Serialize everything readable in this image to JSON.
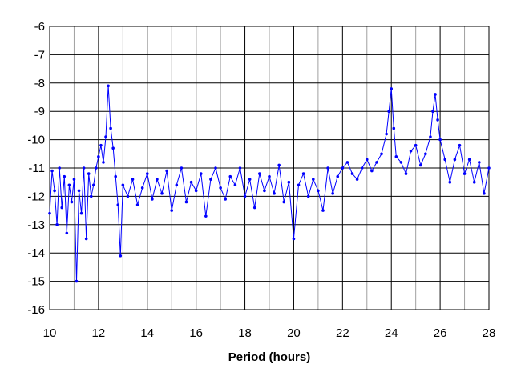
{
  "chart_data": {
    "type": "line",
    "title": "",
    "xlabel": "Period (hours)",
    "ylabel": "",
    "xlim": [
      10,
      28
    ],
    "ylim": [
      -16,
      -6
    ],
    "x_ticks": [
      10,
      12,
      14,
      16,
      18,
      20,
      22,
      24,
      26,
      28
    ],
    "x_tick_labels": [
      "10",
      "12",
      "14",
      "16",
      "18",
      "20",
      "22",
      "24",
      "26",
      "28"
    ],
    "y_ticks": [
      -16,
      -15,
      -14,
      -13,
      -12,
      -11,
      -10,
      -9,
      -8,
      -7,
      -6
    ],
    "y_tick_labels": [
      "-16",
      "-15",
      "-14",
      "-13",
      "-12",
      "-11",
      "-10",
      "-9",
      "-8",
      "-7",
      "-6"
    ],
    "grid": {
      "major_x": true,
      "minor_x": true,
      "major_y": true
    },
    "legend": "none",
    "series": [
      {
        "color": "#0000ff",
        "marker": "circle",
        "x": [
          10.0,
          10.1,
          10.2,
          10.3,
          10.4,
          10.5,
          10.6,
          10.7,
          10.8,
          10.9,
          11.0,
          11.1,
          11.2,
          11.3,
          11.4,
          11.5,
          11.6,
          11.7,
          11.8,
          11.9,
          12.0,
          12.1,
          12.2,
          12.3,
          12.4,
          12.5,
          12.6,
          12.7,
          12.8,
          12.9,
          13.0,
          13.2,
          13.4,
          13.6,
          13.8,
          14.0,
          14.2,
          14.4,
          14.6,
          14.8,
          15.0,
          15.2,
          15.4,
          15.6,
          15.8,
          16.0,
          16.2,
          16.4,
          16.6,
          16.8,
          17.0,
          17.2,
          17.4,
          17.6,
          17.8,
          18.0,
          18.2,
          18.4,
          18.6,
          18.8,
          19.0,
          19.2,
          19.4,
          19.6,
          19.8,
          20.0,
          20.2,
          20.4,
          20.6,
          20.8,
          21.0,
          21.2,
          21.4,
          21.6,
          21.8,
          22.0,
          22.2,
          22.4,
          22.6,
          22.8,
          23.0,
          23.2,
          23.4,
          23.6,
          23.8,
          23.9,
          24.0,
          24.1,
          24.2,
          24.4,
          24.6,
          24.8,
          25.0,
          25.2,
          25.4,
          25.6,
          25.7,
          25.8,
          25.9,
          26.0,
          26.2,
          26.4,
          26.6,
          26.8,
          27.0,
          27.2,
          27.4,
          27.6,
          27.8,
          28.0
        ],
        "y": [
          -12.6,
          -11.1,
          -11.8,
          -13.0,
          -11.0,
          -12.4,
          -11.3,
          -13.3,
          -11.6,
          -12.2,
          -11.4,
          -15.0,
          -11.8,
          -12.6,
          -11.0,
          -13.5,
          -11.2,
          -12.0,
          -11.6,
          -11.0,
          -10.6,
          -10.2,
          -10.8,
          -9.9,
          -8.1,
          -9.6,
          -10.3,
          -11.3,
          -12.3,
          -14.1,
          -11.6,
          -12.0,
          -11.4,
          -12.3,
          -11.7,
          -11.2,
          -12.1,
          -11.4,
          -11.9,
          -11.1,
          -12.5,
          -11.6,
          -11.0,
          -12.2,
          -11.5,
          -11.8,
          -11.2,
          -12.7,
          -11.4,
          -11.0,
          -11.7,
          -12.1,
          -11.3,
          -11.6,
          -11.0,
          -12.0,
          -11.4,
          -12.4,
          -11.2,
          -11.8,
          -11.3,
          -11.9,
          -10.9,
          -12.2,
          -11.5,
          -13.5,
          -11.6,
          -11.2,
          -12.0,
          -11.4,
          -11.8,
          -12.5,
          -11.0,
          -11.9,
          -11.3,
          -11.0,
          -10.8,
          -11.2,
          -11.4,
          -11.0,
          -10.7,
          -11.1,
          -10.8,
          -10.5,
          -9.8,
          -9.0,
          -8.2,
          -9.6,
          -10.6,
          -10.8,
          -11.2,
          -10.4,
          -10.2,
          -10.9,
          -10.5,
          -9.9,
          -9.0,
          -8.4,
          -9.3,
          -10.0,
          -10.7,
          -11.5,
          -10.7,
          -10.2,
          -11.2,
          -10.7,
          -11.5,
          -10.8,
          -11.9,
          -11.0
        ]
      }
    ]
  }
}
